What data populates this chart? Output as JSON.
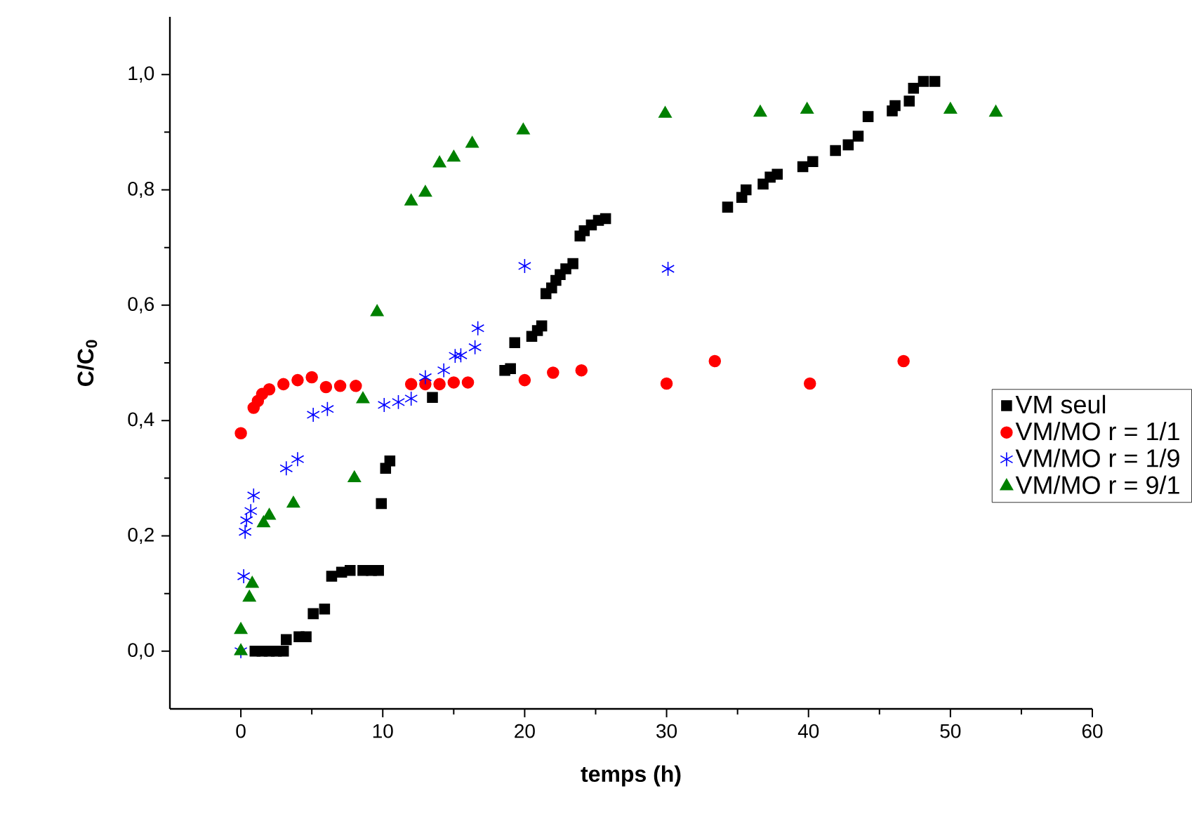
{
  "chart_data": {
    "type": "scatter",
    "xlabel": "temps (h)",
    "ylabel": "C/C$_{0}$",
    "xlim": [
      -5,
      60
    ],
    "ylim": [
      -0.1,
      1.1
    ],
    "xticks": [
      0,
      10,
      20,
      30,
      40,
      50,
      60
    ],
    "yticks": [
      {
        "value": 0,
        "label": "0,0"
      },
      {
        "value": 0.2,
        "label": "0,2"
      },
      {
        "value": 0.4,
        "label": "0,4"
      },
      {
        "value": 0.6,
        "label": "0,6"
      },
      {
        "value": 0.8,
        "label": "0,8"
      },
      {
        "value": 1.0,
        "label": "1,0"
      }
    ],
    "grid": false,
    "legend": "right",
    "series": [
      {
        "name": "VM seul",
        "color": "#000000",
        "marker": "square",
        "x": [
          1.0,
          1.5,
          2.0,
          2.5,
          3.0,
          3.2,
          4.1,
          4.6,
          5.1,
          5.9,
          6.4,
          7.1,
          7.7,
          8.6,
          9.2,
          9.7,
          9.9,
          10.2,
          10.5,
          13.5,
          18.6,
          19.0,
          19.3,
          20.5,
          20.9,
          21.2,
          21.5,
          21.9,
          22.2,
          22.5,
          22.9,
          23.4,
          23.9,
          24.2,
          24.7,
          25.2,
          25.7,
          34.3,
          35.3,
          35.6,
          36.8,
          37.3,
          37.8,
          39.6,
          40.3,
          41.9,
          42.8,
          43.5,
          44.2,
          45.9,
          46.1,
          47.1,
          47.4,
          48.1,
          48.9
        ],
        "values": [
          0.0,
          0.0,
          0.0,
          0.0,
          0.0,
          0.02,
          0.025,
          0.025,
          0.065,
          0.073,
          0.13,
          0.137,
          0.14,
          0.14,
          0.14,
          0.14,
          0.256,
          0.317,
          0.33,
          0.44,
          0.487,
          0.49,
          0.535,
          0.546,
          0.556,
          0.564,
          0.62,
          0.63,
          0.643,
          0.653,
          0.663,
          0.672,
          0.72,
          0.729,
          0.739,
          0.747,
          0.75,
          0.77,
          0.787,
          0.8,
          0.81,
          0.822,
          0.827,
          0.84,
          0.849,
          0.868,
          0.878,
          0.893,
          0.927,
          0.937,
          0.946,
          0.954,
          0.976,
          0.988,
          0.988
        ]
      },
      {
        "name": "VM/MO r = 1/1",
        "color": "#ff0000",
        "marker": "circle",
        "x": [
          0.0,
          0.9,
          1.2,
          1.5,
          2.0,
          3.0,
          4.0,
          5.0,
          6.0,
          7.0,
          8.1,
          12.0,
          13.0,
          14.0,
          15.0,
          16.0,
          20.0,
          22.0,
          24.0,
          30.0,
          33.4,
          40.1,
          46.7
        ],
        "values": [
          0.378,
          0.422,
          0.434,
          0.446,
          0.454,
          0.463,
          0.47,
          0.475,
          0.458,
          0.46,
          0.46,
          0.463,
          0.463,
          0.463,
          0.466,
          0.466,
          0.47,
          0.483,
          0.487,
          0.464,
          0.503,
          0.464,
          0.503
        ]
      },
      {
        "name": "VM/MO r = 1/9",
        "color": "#0000ff",
        "marker": "cross",
        "x": [
          0.0,
          0.2,
          0.3,
          0.4,
          0.7,
          0.9,
          3.2,
          4.0,
          5.1,
          6.1,
          10.1,
          11.1,
          12.0,
          13.0,
          14.3,
          15.1,
          15.5,
          16.5,
          16.7,
          20.0,
          30.1
        ],
        "values": [
          0.0,
          0.13,
          0.207,
          0.227,
          0.243,
          0.27,
          0.317,
          0.333,
          0.41,
          0.42,
          0.427,
          0.432,
          0.438,
          0.475,
          0.487,
          0.512,
          0.513,
          0.527,
          0.56,
          0.668,
          0.663
        ]
      },
      {
        "name": "VM/MO r = 9/1",
        "color": "#008000",
        "marker": "triangle",
        "x": [
          0.0,
          0.0,
          0.6,
          0.8,
          1.6,
          2.0,
          3.7,
          8.0,
          8.6,
          9.6,
          12.0,
          13.0,
          14.0,
          15.0,
          16.3,
          19.9,
          29.9,
          36.6,
          39.9,
          50.0,
          53.2
        ],
        "values": [
          0.0,
          0.037,
          0.093,
          0.117,
          0.222,
          0.235,
          0.256,
          0.3,
          0.437,
          0.588,
          0.78,
          0.795,
          0.846,
          0.856,
          0.88,
          0.903,
          0.932,
          0.934,
          0.939,
          0.939,
          0.934
        ]
      }
    ]
  }
}
